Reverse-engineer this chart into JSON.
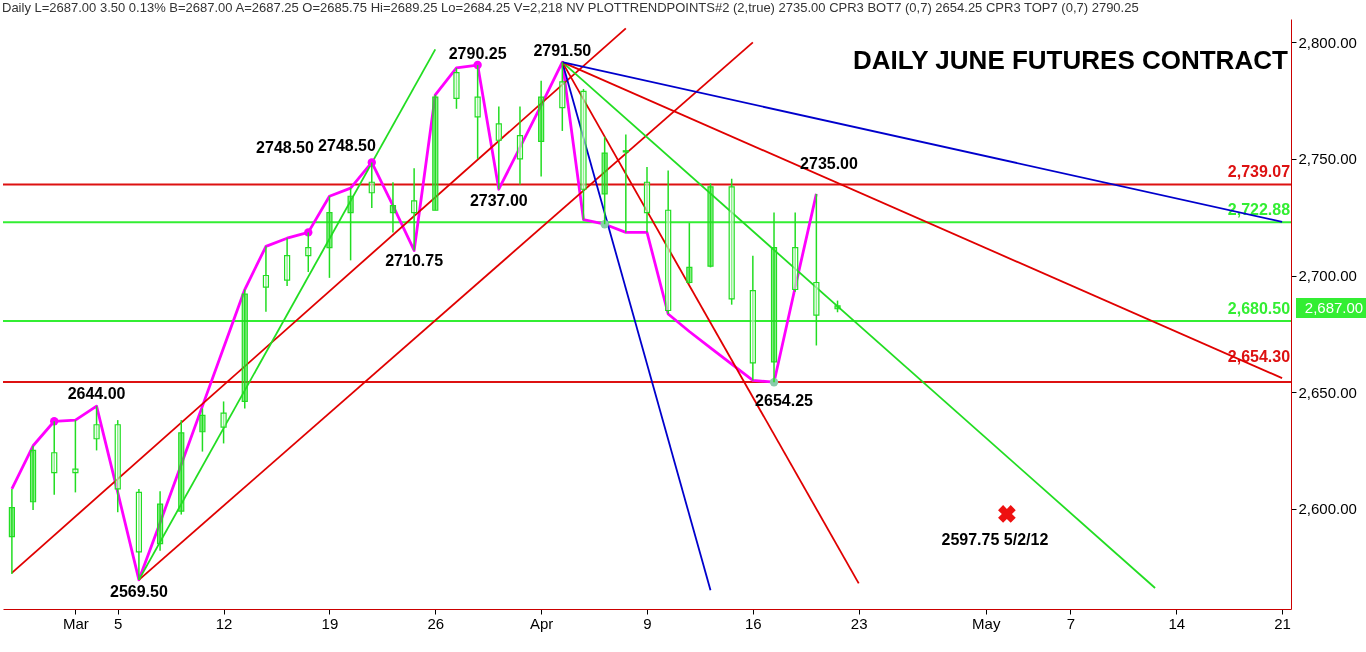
{
  "chart_data": {
    "type": "candlestick",
    "title": "DAILY JUNE FUTURES CONTRACT",
    "subtitle": "Daily  L=2687.00  3.50  0.13%  B=2687.00  A=2687.25  O=2685.75  Hi=2689.25  Lo=2684.25  V=2,218  NV  PLOTTRENDPOINTS#2 (2,true)  2735.00  CPR3 BOT7 (0,7)  2654.25  CPR3 TOP7 (0,7)  2790.25",
    "color": "#22dd22",
    "categories": [
      null,
      null,
      null,
      "Mar",
      null,
      "5",
      null,
      null,
      null,
      null,
      "12",
      null,
      null,
      null,
      null,
      "19",
      null,
      null,
      null,
      null,
      "26",
      null,
      null,
      null,
      null,
      "Apr",
      null,
      null,
      null,
      null,
      "9",
      null,
      null,
      null,
      null,
      "16",
      null,
      null,
      null,
      null,
      "23",
      null,
      null,
      null,
      null,
      null,
      "May",
      null,
      null,
      null,
      "7",
      null,
      null,
      null,
      null,
      "14",
      null,
      null,
      null,
      null,
      "21"
    ],
    "ohlc": [
      [
        2588,
        2608.5,
        2572,
        2600.5
      ],
      [
        2603,
        2627,
        2599.5,
        2625
      ],
      [
        2624,
        2637.5,
        2606,
        2615.5
      ],
      [
        2617,
        2638,
        2607,
        2615.5
      ],
      [
        2636,
        2644,
        2625,
        2630
      ],
      [
        2636,
        2638,
        2598.5,
        2608.5
      ],
      [
        2607,
        2608.5,
        2569.5,
        2581.5
      ],
      [
        2585,
        2607.5,
        2582,
        2602
      ],
      [
        2599,
        2638,
        2597.5,
        2632.5
      ],
      [
        2633,
        2643,
        2624.5,
        2640
      ],
      [
        2641,
        2646,
        2628,
        2635
      ],
      [
        2646,
        2694,
        2643,
        2692
      ],
      [
        2700,
        2712.5,
        2684.5,
        2695
      ],
      [
        2708.5,
        2716,
        2695.5,
        2698
      ],
      [
        2712,
        2718.5,
        2701.5,
        2708.5
      ],
      [
        2712,
        2734,
        2699,
        2727
      ],
      [
        2727,
        2737.5,
        2706.5,
        2734
      ],
      [
        2740,
        2748.5,
        2729,
        2735.5
      ],
      [
        2727,
        2740,
        2718.5,
        2730
      ],
      [
        2732,
        2746,
        2710.75,
        2727
      ],
      [
        2728,
        2777.5,
        2728,
        2776.5
      ],
      [
        2787,
        2789,
        2771.5,
        2776
      ],
      [
        2776.5,
        2790.25,
        2750,
        2768
      ],
      [
        2765,
        2772.5,
        2737,
        2758
      ],
      [
        2760,
        2772.5,
        2739,
        2750
      ],
      [
        2757.5,
        2783.5,
        2742.5,
        2776.5
      ],
      [
        2783,
        2791.5,
        2762,
        2772
      ],
      [
        2779,
        2780,
        2724,
        2737
      ],
      [
        2735,
        2759.5,
        2722,
        2752.5
      ],
      [
        2753,
        2760.5,
        2718.5,
        2753.5
      ],
      [
        2740,
        2746.5,
        2718.5,
        2727
      ],
      [
        2728,
        2745,
        2683.5,
        2685
      ],
      [
        2697,
        2722.5,
        2696.5,
        2703.5
      ],
      [
        2704,
        2739.5,
        2703.5,
        2738
      ],
      [
        2738,
        2741.5,
        2687.5,
        2690
      ],
      [
        2693.5,
        2708.5,
        2655,
        2662.5
      ],
      [
        2663,
        2727,
        2654.25,
        2712
      ],
      [
        2712,
        2727,
        2693,
        2694
      ],
      [
        2697,
        2735,
        2670,
        2683
      ],
      [
        2685.75,
        2689.25,
        2684.25,
        2687
      ],
      null,
      null,
      null,
      null,
      null,
      null,
      null,
      null,
      null,
      null,
      null,
      null,
      null,
      null,
      null,
      null,
      null,
      null,
      null,
      null,
      null
    ],
    "series": [
      {
        "type": "line",
        "color": "#ff00ff",
        "values": [
          2608.5,
          2627,
          2637.5,
          2638,
          2644,
          2607,
          2569.5,
          2594,
          2619,
          2644,
          2669,
          2694,
          2712.5,
          2716,
          2718.5,
          2734,
          2737.5,
          2748.5,
          2730,
          2710.75,
          2777.5,
          2789,
          2790.25,
          2737,
          2755,
          2773,
          2791.5,
          2724,
          2722,
          2718.5,
          2718.5,
          2683.5,
          2676,
          2669,
          2662,
          2655,
          2654.25,
          2695,
          2735,
          null,
          null,
          null,
          null,
          null,
          null,
          null,
          null,
          null,
          null,
          null,
          null,
          null,
          null,
          null,
          null,
          null,
          null,
          null,
          null,
          null,
          null
        ]
      },
      {
        "type": "line",
        "color": "#e00000",
        "values": [
          2572.5,
          null,
          null,
          null,
          null,
          null,
          null,
          null,
          null,
          null,
          null,
          null,
          null,
          null,
          null,
          null,
          null,
          null,
          null,
          null,
          null,
          null,
          null,
          null,
          null,
          null,
          null,
          null,
          null,
          2806,
          null,
          null,
          null,
          null,
          null,
          null,
          null,
          null,
          null,
          null,
          null,
          null,
          null,
          null,
          null,
          null,
          null,
          null,
          null,
          null,
          null,
          null,
          null,
          null,
          null,
          null,
          null,
          null,
          null,
          null,
          null
        ]
      },
      {
        "type": "line",
        "color": "#e00000",
        "values": [
          null,
          null,
          null,
          null,
          null,
          null,
          2569.5,
          null,
          null,
          null,
          null,
          null,
          null,
          null,
          null,
          null,
          null,
          null,
          null,
          null,
          null,
          null,
          null,
          null,
          null,
          null,
          null,
          null,
          null,
          null,
          null,
          null,
          null,
          null,
          null,
          2800,
          null,
          null,
          null,
          null,
          null,
          null,
          null,
          null,
          null,
          null,
          null,
          null,
          null,
          null,
          null,
          null,
          null,
          null,
          null,
          null,
          null,
          null,
          null,
          null,
          null
        ]
      },
      {
        "type": "line",
        "color": "#22dd22",
        "values": [
          null,
          null,
          null,
          null,
          null,
          null,
          2569.5,
          null,
          null,
          null,
          null,
          null,
          null,
          null,
          null,
          null,
          null,
          null,
          null,
          null,
          2797,
          null,
          null,
          null,
          null,
          null,
          null,
          null,
          null,
          null,
          null,
          null,
          null,
          null,
          null,
          null,
          null,
          null,
          null,
          null,
          null,
          null,
          null,
          null,
          null,
          null,
          null,
          null,
          null,
          null,
          null,
          null,
          null,
          null,
          null,
          null,
          null,
          null,
          null,
          null,
          null
        ]
      },
      {
        "type": "line",
        "color": "#0000cc",
        "values": [
          null,
          null,
          null,
          null,
          null,
          null,
          null,
          null,
          null,
          null,
          null,
          null,
          null,
          null,
          null,
          null,
          null,
          null,
          null,
          null,
          null,
          null,
          null,
          null,
          null,
          null,
          2791.5,
          null,
          null,
          null,
          null,
          null,
          null,
          2565,
          null,
          null,
          null,
          null,
          null,
          null,
          null,
          null,
          null,
          null,
          null,
          null,
          null,
          null,
          null,
          null,
          null,
          null,
          null,
          null,
          null,
          null,
          null,
          null,
          null,
          null,
          null
        ]
      },
      {
        "type": "line",
        "color": "#e00000",
        "values": [
          null,
          null,
          null,
          null,
          null,
          null,
          null,
          null,
          null,
          null,
          null,
          null,
          null,
          null,
          null,
          null,
          null,
          null,
          null,
          null,
          null,
          null,
          null,
          null,
          null,
          null,
          2791.5,
          null,
          null,
          null,
          null,
          null,
          null,
          null,
          null,
          null,
          null,
          null,
          null,
          null,
          2568,
          null,
          null,
          null,
          null,
          null,
          null,
          null,
          null,
          null,
          null,
          null,
          null,
          null,
          null,
          null,
          null,
          null,
          null,
          null,
          null
        ]
      },
      {
        "type": "line",
        "color": "#22dd22",
        "values": [
          null,
          null,
          null,
          null,
          null,
          null,
          null,
          null,
          null,
          null,
          null,
          null,
          null,
          null,
          null,
          null,
          null,
          null,
          null,
          null,
          null,
          null,
          null,
          null,
          null,
          null,
          2791.5,
          null,
          null,
          null,
          null,
          null,
          null,
          null,
          null,
          null,
          null,
          null,
          null,
          null,
          null,
          null,
          null,
          null,
          null,
          null,
          null,
          null,
          null,
          null,
          null,
          null,
          null,
          null,
          2566,
          null,
          null,
          null,
          null,
          null,
          null
        ]
      },
      {
        "type": "line",
        "color": "#e00000",
        "values": [
          null,
          null,
          null,
          null,
          null,
          null,
          null,
          null,
          null,
          null,
          null,
          null,
          null,
          null,
          null,
          null,
          null,
          null,
          null,
          null,
          null,
          null,
          null,
          null,
          null,
          null,
          2791.5,
          null,
          null,
          null,
          null,
          null,
          null,
          null,
          null,
          null,
          null,
          null,
          null,
          null,
          null,
          null,
          null,
          null,
          null,
          null,
          null,
          null,
          null,
          null,
          null,
          null,
          null,
          null,
          null,
          null,
          null,
          null,
          null,
          null,
          2656
        ]
      },
      {
        "type": "line",
        "color": "#0000cc",
        "values": [
          null,
          null,
          null,
          null,
          null,
          null,
          null,
          null,
          null,
          null,
          null,
          null,
          null,
          null,
          null,
          null,
          null,
          null,
          null,
          null,
          null,
          null,
          null,
          null,
          null,
          null,
          2791.5,
          null,
          null,
          null,
          null,
          null,
          null,
          null,
          null,
          null,
          null,
          null,
          null,
          null,
          null,
          null,
          null,
          null,
          null,
          null,
          null,
          null,
          null,
          null,
          null,
          null,
          null,
          null,
          null,
          null,
          null,
          null,
          null,
          null,
          2723
        ]
      },
      {
        "type": "scatter",
        "marker": "circle",
        "color": "#ff00ff",
        "values": [
          null,
          null,
          2637.5,
          null,
          null,
          null,
          null,
          null,
          null,
          null,
          null,
          null,
          null,
          null,
          2718.5,
          null,
          null,
          2748.5,
          null,
          null,
          null,
          null,
          2790.25,
          null,
          null,
          null,
          null,
          null,
          null,
          null,
          null,
          null,
          null,
          null,
          null,
          null,
          null,
          null,
          null,
          null,
          null,
          null,
          null,
          null,
          null,
          null,
          null,
          null,
          null,
          null,
          null,
          null,
          null,
          null,
          null,
          null,
          null,
          null,
          null,
          null,
          null
        ]
      },
      {
        "type": "scatter",
        "marker": "circle",
        "color": "#88ccaa",
        "values": [
          null,
          null,
          null,
          null,
          null,
          null,
          null,
          null,
          null,
          null,
          null,
          null,
          null,
          null,
          null,
          null,
          null,
          null,
          null,
          null,
          null,
          null,
          null,
          null,
          null,
          null,
          null,
          null,
          2722,
          null,
          null,
          null,
          null,
          null,
          null,
          null,
          2654.25,
          null,
          null,
          null,
          null,
          null,
          null,
          null,
          null,
          null,
          null,
          null,
          null,
          null,
          null,
          null,
          null,
          null,
          null,
          null,
          null,
          null,
          null,
          null,
          null
        ]
      },
      {
        "type": "scatter",
        "marker": "cross",
        "color": "#ee1111",
        "values": [
          null,
          null,
          null,
          null,
          null,
          null,
          null,
          null,
          null,
          null,
          null,
          null,
          null,
          null,
          null,
          null,
          null,
          null,
          null,
          null,
          null,
          null,
          null,
          null,
          null,
          null,
          null,
          null,
          null,
          null,
          null,
          null,
          null,
          null,
          null,
          null,
          null,
          null,
          null,
          null,
          null,
          null,
          null,
          null,
          null,
          null,
          null,
          2597.75,
          null,
          null,
          null,
          null,
          null,
          null,
          null,
          null,
          null,
          null,
          null,
          null,
          null
        ]
      }
    ],
    "ylim": [
      2557,
      2810
    ],
    "yticks": [
      {
        "value": 2600,
        "label": "2,600.00"
      },
      {
        "value": 2650,
        "label": "2,650.00"
      },
      {
        "value": 2700,
        "label": "2,700.00"
      },
      {
        "value": 2750,
        "label": "2,750.00"
      },
      {
        "value": 2800,
        "label": "2,800.00"
      }
    ],
    "ref_lines": [
      {
        "axis": "y",
        "value": 2739.07,
        "label": "2,739.07",
        "color": "#dd1111"
      },
      {
        "axis": "y",
        "value": 2722.88,
        "label": "2,722.88",
        "color": "#33ee33"
      },
      {
        "axis": "y",
        "value": 2680.5,
        "label": "2,680.50",
        "color": "#33ee33"
      },
      {
        "axis": "y",
        "value": 2654.3,
        "label": "2,654.30",
        "color": "#dd1111"
      }
    ],
    "annotations": [
      {
        "text": "2644.00",
        "y": 2644
      },
      {
        "text": "2569.50",
        "y": 2569.5
      },
      "2748.50",
      "2748.50",
      {
        "text": "2710.75",
        "y": 2710.75
      },
      {
        "text": "2790.25",
        "y": 2790.25
      },
      {
        "text": "2737.00",
        "y": 2737
      },
      {
        "text": "2791.50",
        "y": 2791.5
      },
      "2735.00",
      {
        "text": "2654.25",
        "y": 2654.25
      },
      {
        "text": "2597.75 5/2/12",
        "y": 2597.75
      },
      "2,687.00"
    ]
  }
}
